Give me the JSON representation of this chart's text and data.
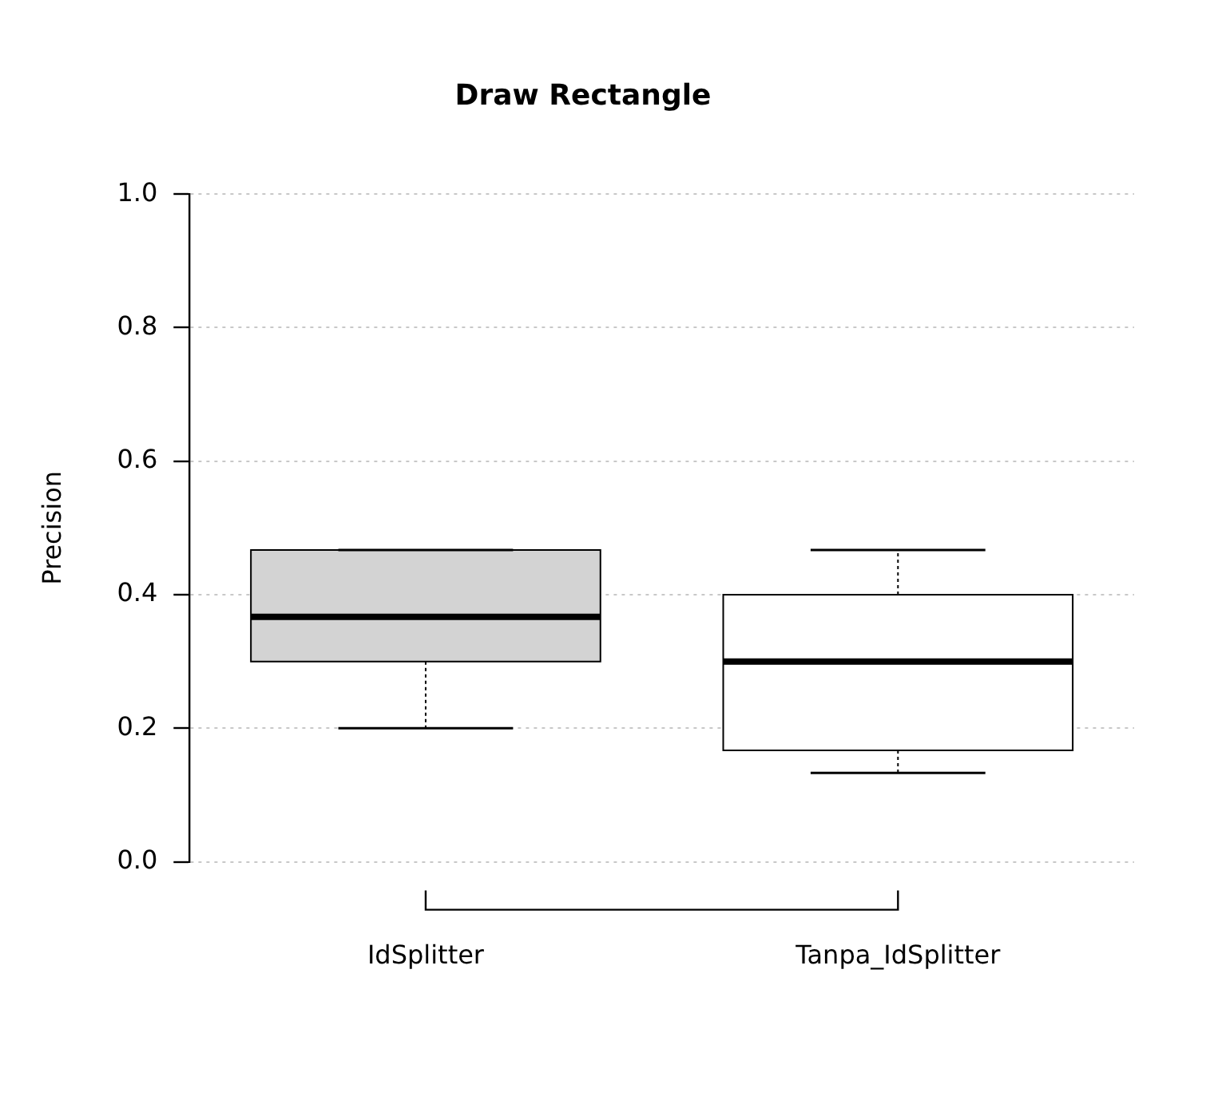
{
  "chart_data": {
    "type": "box",
    "title": "Draw Rectangle",
    "ylabel": "Precision",
    "categories": [
      "IdSplitter",
      "Tanpa_IdSplitter"
    ],
    "boxes": [
      {
        "low": 0.2,
        "q1": 0.3,
        "median": 0.367,
        "q3": 0.467,
        "high": 0.467
      },
      {
        "low": 0.133,
        "q1": 0.167,
        "median": 0.3,
        "q3": 0.4,
        "high": 0.467
      }
    ],
    "colors": [
      "#d3d3d3",
      "#ffffff"
    ],
    "ylim": [
      0,
      1
    ],
    "yticks": [
      {
        "value": 0,
        "label": "0.0"
      },
      {
        "value": 0.2,
        "label": "0.2"
      },
      {
        "value": 0.4,
        "label": "0.4"
      },
      {
        "value": 0.6,
        "label": "0.6"
      },
      {
        "value": 0.8,
        "label": "0.8"
      },
      {
        "value": 1,
        "label": "1.0"
      }
    ],
    "grid": "y",
    "legend": false
  }
}
